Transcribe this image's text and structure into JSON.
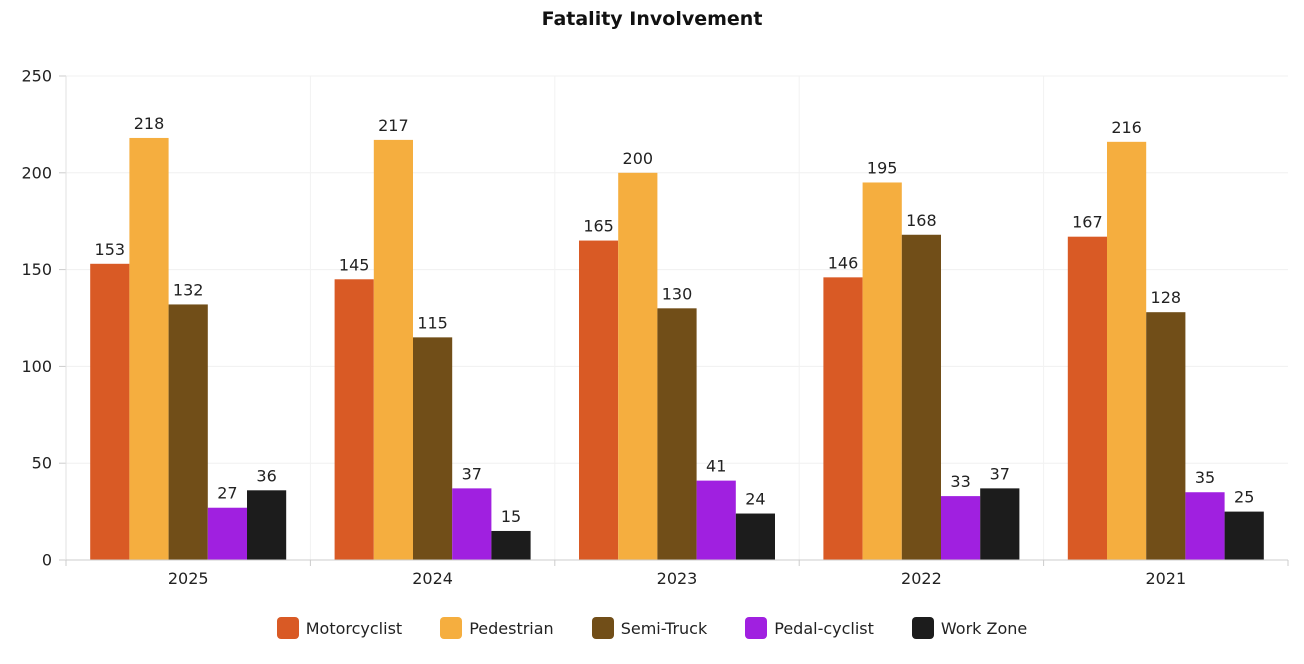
{
  "chart_data": {
    "type": "bar",
    "title": "Fatality Involvement",
    "xlabel": "",
    "ylabel": "",
    "ylim": [
      0,
      250
    ],
    "yticks": [
      0,
      50,
      100,
      150,
      200,
      250
    ],
    "grid": true,
    "legend_position": "bottom",
    "categories": [
      "2025",
      "2024",
      "2023",
      "2022",
      "2021"
    ],
    "series": [
      {
        "name": "Motorcyclist",
        "color": "#d95a25",
        "values": [
          153,
          145,
          165,
          146,
          167
        ]
      },
      {
        "name": "Pedestrian",
        "color": "#f5ae3f",
        "values": [
          218,
          217,
          200,
          195,
          216
        ]
      },
      {
        "name": "Semi-Truck",
        "color": "#714e18",
        "values": [
          132,
          115,
          130,
          168,
          128
        ]
      },
      {
        "name": "Pedal-cyclist",
        "color": "#a020e0",
        "values": [
          27,
          37,
          41,
          33,
          35
        ]
      },
      {
        "name": "Work Zone",
        "color": "#1c1c1c",
        "values": [
          36,
          15,
          24,
          37,
          25
        ]
      }
    ]
  }
}
